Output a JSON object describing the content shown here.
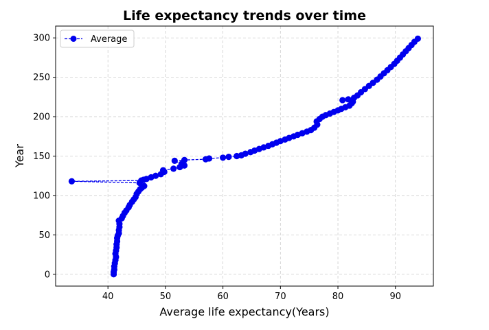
{
  "chart_data": {
    "type": "line",
    "title": "Life expectancy trends over time",
    "xlabel": "Average life expectancy(Years)",
    "ylabel": "Year",
    "xlim": [
      30.9,
      96.6
    ],
    "ylim": [
      -15,
      315
    ],
    "xticks": [
      40,
      50,
      60,
      70,
      80,
      90
    ],
    "yticks": [
      0,
      50,
      100,
      150,
      200,
      250,
      300
    ],
    "grid": true,
    "legend_position": "top-left",
    "series": [
      {
        "name": "Average",
        "color": "#0000ee",
        "marker": "circle",
        "line_style": "dashed",
        "points": [
          [
            41.0,
            0
          ],
          [
            41.0,
            3
          ],
          [
            41.1,
            6
          ],
          [
            41.1,
            10
          ],
          [
            41.2,
            14
          ],
          [
            41.3,
            18
          ],
          [
            41.4,
            22
          ],
          [
            41.3,
            26
          ],
          [
            41.4,
            30
          ],
          [
            41.5,
            34
          ],
          [
            41.5,
            38
          ],
          [
            41.6,
            42
          ],
          [
            41.6,
            46
          ],
          [
            41.7,
            49
          ],
          [
            41.9,
            52
          ],
          [
            41.9,
            56
          ],
          [
            42.0,
            60
          ],
          [
            42.0,
            64
          ],
          [
            41.9,
            68
          ],
          [
            42.4,
            71
          ],
          [
            42.6,
            74
          ],
          [
            42.9,
            78
          ],
          [
            43.2,
            81
          ],
          [
            43.6,
            85
          ],
          [
            43.8,
            88
          ],
          [
            44.2,
            92
          ],
          [
            44.5,
            95
          ],
          [
            44.8,
            98
          ],
          [
            45.0,
            102
          ],
          [
            45.3,
            105
          ],
          [
            45.6,
            108
          ],
          [
            45.9,
            110
          ],
          [
            46.3,
            112
          ],
          [
            45.5,
            116
          ],
          [
            33.7,
            118
          ],
          [
            45.8,
            119
          ],
          [
            46.2,
            120
          ],
          [
            46.7,
            121
          ],
          [
            47.5,
            123
          ],
          [
            48.3,
            125
          ],
          [
            49.2,
            127
          ],
          [
            49.8,
            130
          ],
          [
            49.6,
            132
          ],
          [
            51.4,
            134
          ],
          [
            52.5,
            136
          ],
          [
            53.3,
            138
          ],
          [
            52.8,
            140
          ],
          [
            51.6,
            144
          ],
          [
            53.3,
            145
          ],
          [
            57.0,
            146
          ],
          [
            57.6,
            147
          ],
          [
            60.0,
            148
          ],
          [
            61.0,
            149
          ],
          [
            62.4,
            150
          ],
          [
            63.2,
            151
          ],
          [
            63.9,
            153
          ],
          [
            64.8,
            155
          ],
          [
            65.5,
            157
          ],
          [
            66.3,
            159
          ],
          [
            67.1,
            161
          ],
          [
            67.9,
            163
          ],
          [
            68.6,
            165
          ],
          [
            69.3,
            167
          ],
          [
            70.0,
            169
          ],
          [
            70.8,
            171
          ],
          [
            71.5,
            173
          ],
          [
            72.3,
            175
          ],
          [
            73.0,
            177
          ],
          [
            73.8,
            179
          ],
          [
            74.6,
            181
          ],
          [
            75.3,
            183
          ],
          [
            75.9,
            186
          ],
          [
            76.4,
            190
          ],
          [
            76.3,
            194
          ],
          [
            76.8,
            197
          ],
          [
            77.3,
            200
          ],
          [
            77.9,
            202
          ],
          [
            78.6,
            204
          ],
          [
            79.3,
            206
          ],
          [
            80.0,
            208
          ],
          [
            80.6,
            210
          ],
          [
            81.3,
            212
          ],
          [
            82.0,
            214
          ],
          [
            82.4,
            217
          ],
          [
            82.6,
            219
          ],
          [
            80.8,
            221
          ],
          [
            81.8,
            222
          ],
          [
            82.8,
            224
          ],
          [
            83.4,
            227
          ],
          [
            84.0,
            231
          ],
          [
            84.7,
            235
          ],
          [
            85.4,
            239
          ],
          [
            86.1,
            243
          ],
          [
            86.8,
            247
          ],
          [
            87.4,
            251
          ],
          [
            88.0,
            255
          ],
          [
            88.6,
            259
          ],
          [
            89.2,
            263
          ],
          [
            89.8,
            267
          ],
          [
            90.3,
            271
          ],
          [
            90.8,
            275
          ],
          [
            91.3,
            279
          ],
          [
            91.8,
            283
          ],
          [
            92.3,
            287
          ],
          [
            92.8,
            291
          ],
          [
            93.3,
            295
          ],
          [
            93.9,
            299
          ]
        ]
      }
    ]
  }
}
